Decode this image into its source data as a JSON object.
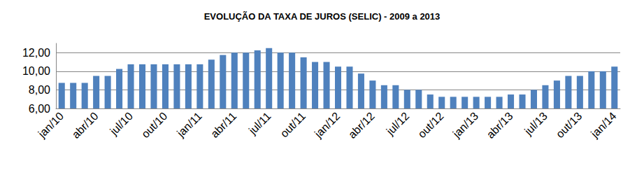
{
  "chart_data": {
    "type": "bar",
    "title": "EVOLUÇÃO DA TAXA DE JUROS (SELIC) - 2009 a 2013",
    "categories": [
      "jan/10",
      null,
      null,
      "abr/10",
      null,
      null,
      "jul/10",
      null,
      null,
      "out/10",
      null,
      null,
      "jan/11",
      null,
      null,
      "abr/11",
      null,
      null,
      "jul/11",
      null,
      null,
      "out/11",
      null,
      null,
      "jan/12",
      null,
      null,
      "abr/12",
      null,
      null,
      "jul/12",
      null,
      null,
      "out/12",
      null,
      null,
      "jan/13",
      null,
      null,
      "abr/13",
      null,
      null,
      "jul/13",
      null,
      null,
      "out/13",
      null,
      null,
      "jan/14"
    ],
    "values": [
      8.75,
      8.75,
      8.75,
      9.5,
      9.5,
      10.25,
      10.75,
      10.75,
      10.75,
      10.75,
      10.75,
      10.75,
      10.75,
      11.25,
      11.75,
      12.0,
      12.0,
      12.25,
      12.5,
      12.0,
      12.0,
      11.5,
      11.0,
      11.0,
      10.5,
      10.5,
      9.75,
      9.0,
      8.5,
      8.5,
      8.0,
      8.0,
      7.5,
      7.25,
      7.25,
      7.25,
      7.25,
      7.25,
      7.25,
      7.5,
      7.5,
      8.0,
      8.5,
      9.0,
      9.5,
      9.5,
      10.0,
      10.0,
      10.5
    ],
    "color": "#4f81bd",
    "ylim": [
      6,
      13
    ],
    "yticks": [
      {
        "value": 6,
        "label": "6,00"
      },
      {
        "value": 8,
        "label": "8,00"
      },
      {
        "value": 10,
        "label": "10,00"
      },
      {
        "value": 12,
        "label": "12,00"
      }
    ],
    "grid": true
  }
}
